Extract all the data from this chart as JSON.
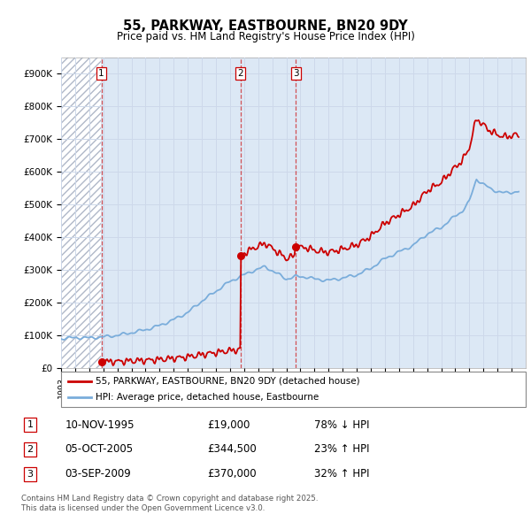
{
  "title": "55, PARKWAY, EASTBOURNE, BN20 9DY",
  "subtitle": "Price paid vs. HM Land Registry's House Price Index (HPI)",
  "legend_label_red": "55, PARKWAY, EASTBOURNE, BN20 9DY (detached house)",
  "legend_label_blue": "HPI: Average price, detached house, Eastbourne",
  "transactions": [
    {
      "num": 1,
      "date": "10-NOV-1995",
      "price": 19000,
      "pct": "78%",
      "dir": "↓",
      "year_x": 1995.86
    },
    {
      "num": 2,
      "date": "05-OCT-2005",
      "price": 344500,
      "pct": "23%",
      "dir": "↑",
      "year_x": 2005.75
    },
    {
      "num": 3,
      "date": "03-SEP-2009",
      "price": 370000,
      "pct": "32%",
      "dir": "↑",
      "year_x": 2009.67
    }
  ],
  "footnote": "Contains HM Land Registry data © Crown copyright and database right 2025.\nThis data is licensed under the Open Government Licence v3.0.",
  "ylim": [
    0,
    950000
  ],
  "yticks": [
    0,
    100000,
    200000,
    300000,
    400000,
    500000,
    600000,
    700000,
    800000,
    900000
  ],
  "ytick_labels": [
    "£0",
    "£100K",
    "£200K",
    "£300K",
    "£400K",
    "£500K",
    "£600K",
    "£700K",
    "£800K",
    "£900K"
  ],
  "xlim": [
    1993.0,
    2026.0
  ],
  "red_color": "#cc0000",
  "blue_color": "#7aaddb",
  "grid_color": "#cdd8ea",
  "bg_color": "#dce8f5",
  "hatch_end": 1995.86
}
